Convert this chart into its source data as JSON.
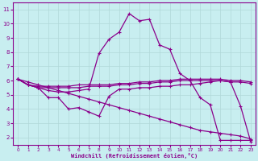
{
  "title": "",
  "xlabel": "Windchill (Refroidissement éolien,°C)",
  "background_color": "#c8eef0",
  "line_color": "#8b008b",
  "grid_color": "#b0d8d8",
  "xlim": [
    -0.5,
    23.5
  ],
  "ylim": [
    1.5,
    11.5
  ],
  "xticks": [
    0,
    1,
    2,
    3,
    4,
    5,
    6,
    7,
    8,
    9,
    10,
    11,
    12,
    13,
    14,
    15,
    16,
    17,
    18,
    19,
    20,
    21,
    22,
    23
  ],
  "yticks": [
    2,
    3,
    4,
    5,
    6,
    7,
    8,
    9,
    10,
    11
  ],
  "curve_main_x": [
    0,
    1,
    2,
    3,
    4,
    5,
    6,
    7,
    8,
    9,
    10,
    11,
    12,
    13,
    14,
    15,
    16,
    17,
    18,
    19,
    20,
    21,
    22,
    23
  ],
  "curve_main_y": [
    6.1,
    5.7,
    5.5,
    5.3,
    5.2,
    5.2,
    5.3,
    5.4,
    7.9,
    8.9,
    9.4,
    10.7,
    10.2,
    10.3,
    8.5,
    8.2,
    6.5,
    6.0,
    4.8,
    4.3,
    1.8,
    1.8,
    1.8,
    1.8
  ],
  "curve_flat1_x": [
    0,
    1,
    2,
    3,
    4,
    5,
    6,
    7,
    8,
    9,
    10,
    11,
    12,
    13,
    14,
    15,
    16,
    17,
    18,
    19,
    20,
    21,
    22,
    23
  ],
  "curve_flat1_y": [
    6.1,
    5.7,
    5.6,
    5.6,
    5.6,
    5.6,
    5.7,
    5.7,
    5.7,
    5.7,
    5.8,
    5.8,
    5.9,
    5.9,
    6.0,
    6.0,
    6.1,
    6.1,
    6.1,
    6.1,
    6.1,
    6.0,
    6.0,
    5.9
  ],
  "curve_flat2_x": [
    0,
    1,
    2,
    3,
    4,
    5,
    6,
    7,
    8,
    9,
    10,
    11,
    12,
    13,
    14,
    15,
    16,
    17,
    18,
    19,
    20,
    21,
    22,
    23
  ],
  "curve_flat2_y": [
    6.1,
    5.7,
    5.5,
    5.5,
    5.5,
    5.5,
    5.5,
    5.6,
    5.6,
    5.6,
    5.7,
    5.7,
    5.8,
    5.8,
    5.9,
    5.9,
    6.0,
    6.0,
    6.0,
    6.0,
    6.0,
    5.9,
    5.9,
    5.8
  ],
  "curve_zigzag_x": [
    0,
    1,
    2,
    3,
    4,
    5,
    6,
    7,
    8,
    9,
    10,
    11,
    12,
    13,
    14,
    15,
    16,
    17,
    18,
    19,
    20,
    21,
    22,
    23
  ],
  "curve_zigzag_y": [
    6.1,
    5.7,
    5.5,
    4.8,
    4.8,
    4.0,
    4.1,
    3.8,
    3.5,
    4.9,
    5.4,
    5.4,
    5.5,
    5.5,
    5.6,
    5.6,
    5.7,
    5.7,
    5.8,
    5.9,
    6.0,
    5.9,
    4.2,
    1.7
  ],
  "curve_diag_x": [
    0,
    1,
    2,
    3,
    4,
    5,
    6,
    7,
    8,
    9,
    10,
    11,
    12,
    13,
    14,
    15,
    16,
    17,
    18,
    19,
    20,
    21,
    22,
    23
  ],
  "curve_diag_y": [
    6.1,
    5.9,
    5.7,
    5.5,
    5.3,
    5.1,
    4.9,
    4.7,
    4.5,
    4.3,
    4.1,
    3.9,
    3.7,
    3.5,
    3.3,
    3.1,
    2.9,
    2.7,
    2.5,
    2.4,
    2.3,
    2.2,
    2.1,
    1.9
  ]
}
